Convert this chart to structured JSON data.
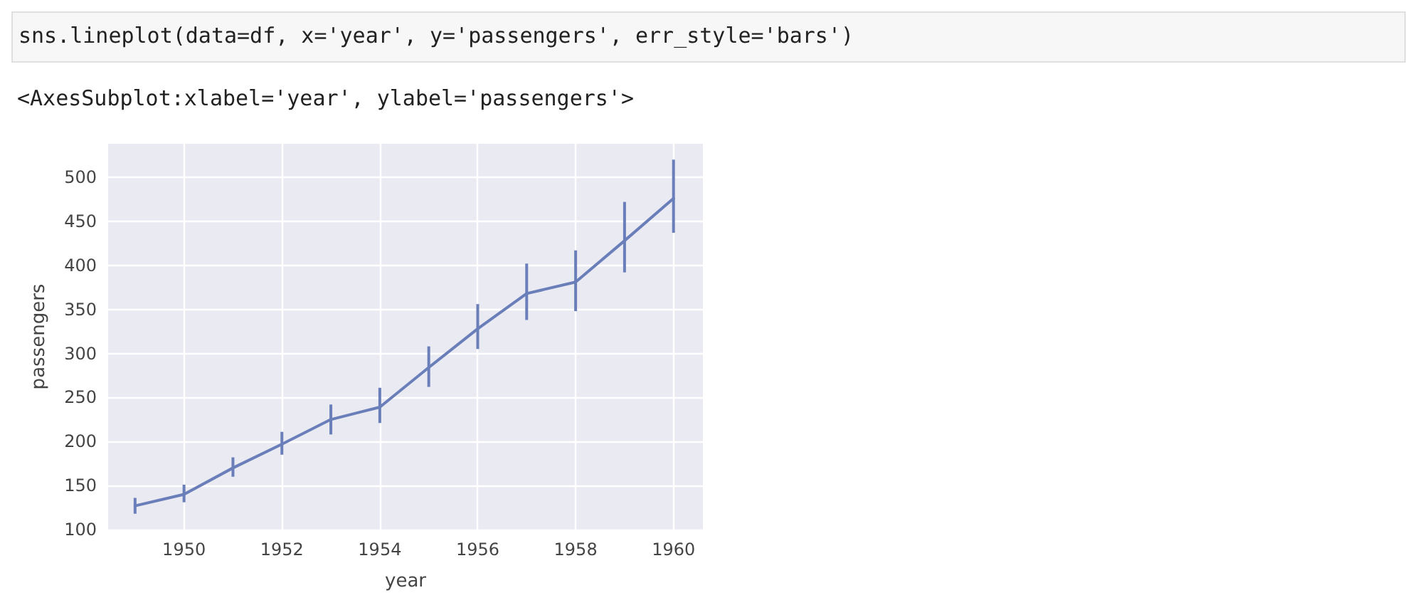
{
  "chart_data": {
    "type": "line",
    "xlabel": "year",
    "ylabel": "passengers",
    "annotations": [
      "sns.lineplot(data=df, x='year', y='passengers', err_style='bars')",
      "<AxesSubplot:xlabel='year', ylabel='passengers'>"
    ],
    "x": [
      1949,
      1950,
      1951,
      1952,
      1953,
      1954,
      1955,
      1956,
      1957,
      1958,
      1959,
      1960
    ],
    "series": [
      {
        "color": "#6a7fb9",
        "values": [
          127,
          140,
          170,
          197,
          225,
          239,
          284,
          328,
          368,
          381,
          428,
          476
        ],
        "errors": [
          [
            118,
            136
          ],
          [
            131,
            151
          ],
          [
            160,
            182
          ],
          [
            185,
            211
          ],
          [
            208,
            242
          ],
          [
            221,
            261
          ],
          [
            262,
            308
          ],
          [
            305,
            356
          ],
          [
            338,
            402
          ],
          [
            348,
            417
          ],
          [
            392,
            472
          ],
          [
            437,
            520
          ]
        ]
      }
    ],
    "xlim": [
      1948.45,
      1960.6
    ],
    "xticks": [
      1950,
      1952,
      1954,
      1956,
      1958,
      1960
    ],
    "ylim": [
      100,
      538
    ],
    "yticks": [
      100,
      150,
      200,
      250,
      300,
      350,
      400,
      450,
      500
    ],
    "grid": true,
    "marker": "none",
    "line_style": "solid"
  }
}
